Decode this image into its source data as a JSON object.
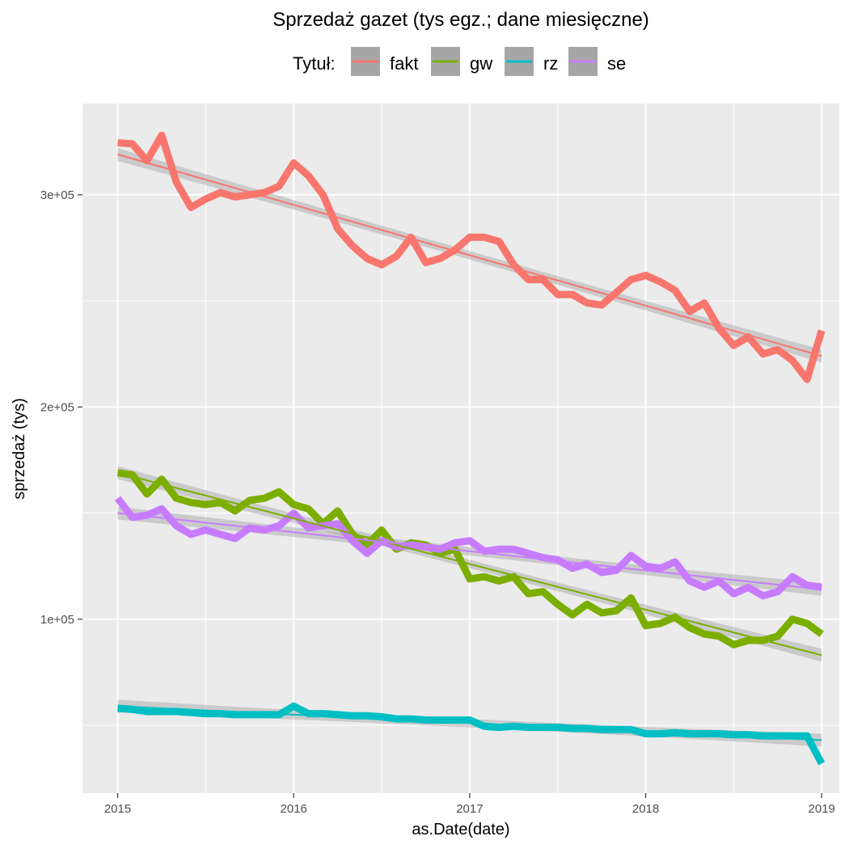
{
  "chart_data": {
    "type": "line",
    "title": "Sprzedaż gazet (tys egz.; dane miesięczne)",
    "xlabel": "as.Date(date)",
    "ylabel": "sprzedaż (tys)",
    "legend": {
      "title": "Tytuł:",
      "position": "top"
    },
    "x_ticks": [
      "2015",
      "2016",
      "2017",
      "2018",
      "2019"
    ],
    "y_ticks": [
      {
        "value": 100000,
        "label": "1e+05"
      },
      {
        "value": 200000,
        "label": "2e+05"
      },
      {
        "value": 300000,
        "label": "3e+05"
      }
    ],
    "xlim": [
      2014.8,
      2019.1
    ],
    "ylim": [
      18000,
      343000
    ],
    "grid": true,
    "trend_lines": "linear fit with confidence band per series",
    "series": [
      {
        "name": "fakt",
        "color": "#F8766D",
        "values": [
          324500,
          324000,
          316000,
          328000,
          306000,
          294000,
          298000,
          301000,
          299000,
          300000,
          301000,
          304000,
          315000,
          309000,
          300000,
          284000,
          276000,
          270000,
          267000,
          271000,
          280000,
          268000,
          270000,
          274000,
          280000,
          280000,
          278000,
          267000,
          260000,
          260000,
          253000,
          253000,
          249000,
          248000,
          254000,
          260000,
          262000,
          259000,
          255000,
          245000,
          249000,
          237000,
          229000,
          233000,
          225000,
          227000,
          222000,
          213000,
          236000
        ],
        "trend": [
          319000,
          224000
        ]
      },
      {
        "name": "gw",
        "color": "#7CAE00",
        "values": [
          169000,
          168000,
          159000,
          166000,
          157000,
          155000,
          154000,
          155000,
          151000,
          156000,
          157000,
          160000,
          154000,
          152000,
          145000,
          151000,
          140000,
          135000,
          142000,
          133000,
          136000,
          135000,
          131000,
          133000,
          119000,
          120000,
          118000,
          120000,
          112000,
          113000,
          107000,
          102000,
          107000,
          103000,
          104000,
          110000,
          97000,
          98000,
          101000,
          96000,
          93000,
          92000,
          88000,
          90000,
          90000,
          92000,
          100000,
          98000,
          93000
        ],
        "trend": [
          169000,
          83000
        ]
      },
      {
        "name": "rz",
        "color": "#00BFC4",
        "values": [
          58000,
          57500,
          56500,
          56500,
          56500,
          56000,
          55500,
          55500,
          55000,
          55000,
          55000,
          55000,
          59000,
          55500,
          55500,
          55000,
          54500,
          54500,
          54000,
          53000,
          53000,
          52500,
          52500,
          52500,
          52500,
          49500,
          49000,
          49500,
          49000,
          49000,
          49000,
          48500,
          48500,
          48000,
          48000,
          48000,
          46000,
          46000,
          46500,
          46000,
          46000,
          46000,
          45500,
          45500,
          45000,
          45000,
          45000,
          45000,
          32000
        ],
        "trend": [
          59000,
          43000
        ]
      },
      {
        "name": "se",
        "color": "#C77CFF",
        "values": [
          157000,
          148000,
          149000,
          152000,
          144000,
          140000,
          142000,
          140000,
          138000,
          143000,
          142000,
          144000,
          150000,
          143000,
          144000,
          145000,
          137000,
          131000,
          137000,
          134000,
          135000,
          134000,
          133000,
          136000,
          137000,
          132000,
          133000,
          133000,
          131000,
          129000,
          128000,
          124000,
          126000,
          122000,
          123000,
          130000,
          125000,
          124000,
          127000,
          118000,
          115000,
          118000,
          112000,
          115000,
          111000,
          113000,
          120000,
          116000,
          115000
        ],
        "trend": [
          150000,
          114000
        ]
      }
    ]
  }
}
